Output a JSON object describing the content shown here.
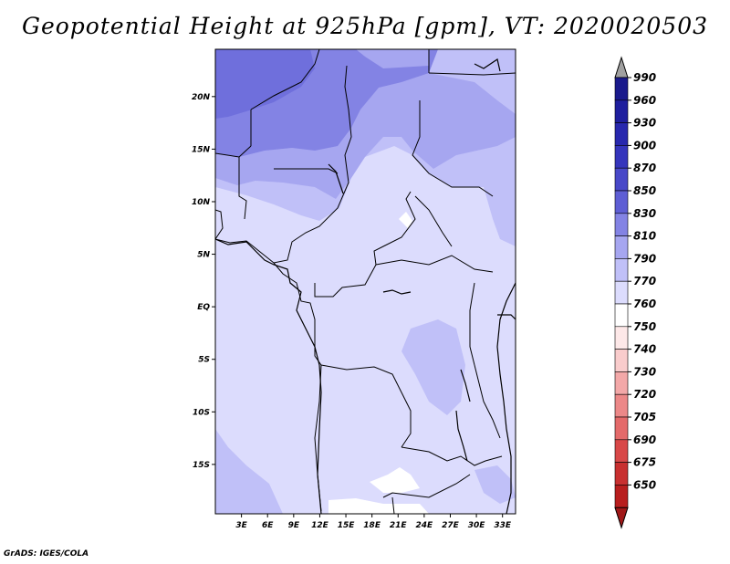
{
  "title": "Geopotential Height at 925hPa [gpm], VT: 2020020503",
  "credit": "GrADS: IGES/COLA",
  "map": {
    "lon_range": [
      0,
      34.5
    ],
    "lat_range": [
      -19.7,
      24.5
    ],
    "lon_ticks": [
      {
        "value": 3,
        "label": "3E"
      },
      {
        "value": 6,
        "label": "6E"
      },
      {
        "value": 9,
        "label": "9E"
      },
      {
        "value": 12,
        "label": "12E"
      },
      {
        "value": 15,
        "label": "15E"
      },
      {
        "value": 18,
        "label": "18E"
      },
      {
        "value": 21,
        "label": "21E"
      },
      {
        "value": 24,
        "label": "24E"
      },
      {
        "value": 27,
        "label": "27E"
      },
      {
        "value": 30,
        "label": "30E"
      },
      {
        "value": 33,
        "label": "33E"
      }
    ],
    "lat_ticks": [
      {
        "value": 20,
        "label": "20N"
      },
      {
        "value": 15,
        "label": "15N"
      },
      {
        "value": 10,
        "label": "10N"
      },
      {
        "value": 5,
        "label": "5N"
      },
      {
        "value": 0,
        "label": "EQ"
      },
      {
        "value": -5,
        "label": "5S"
      },
      {
        "value": -10,
        "label": "10S"
      },
      {
        "value": -15,
        "label": "15S"
      }
    ]
  },
  "colorbar": {
    "levels": [
      {
        "label": "990",
        "color": "#1a1a8c"
      },
      {
        "label": "960",
        "color": "#1f1f9e"
      },
      {
        "label": "930",
        "color": "#2828ae"
      },
      {
        "label": "900",
        "color": "#3535bc"
      },
      {
        "label": "870",
        "color": "#4848c8"
      },
      {
        "label": "850",
        "color": "#5e5ed4"
      },
      {
        "label": "830",
        "color": "#8383e4"
      },
      {
        "label": "810",
        "color": "#a6a6f0"
      },
      {
        "label": "790",
        "color": "#c0c0f8"
      },
      {
        "label": "770",
        "color": "#dcdcfd"
      },
      {
        "label": "760",
        "color": "#ffffff"
      },
      {
        "label": "750",
        "color": "#fde8e8"
      },
      {
        "label": "740",
        "color": "#f9cccc"
      },
      {
        "label": "730",
        "color": "#f3a8a8"
      },
      {
        "label": "720",
        "color": "#ec8888"
      },
      {
        "label": "705",
        "color": "#e46a6a"
      },
      {
        "label": "690",
        "color": "#d84848"
      },
      {
        "label": "675",
        "color": "#c83030"
      },
      {
        "label": "650",
        "color": "#b81e1e"
      }
    ],
    "over_color": "#a0a0a0",
    "under_color": "#a01818"
  }
}
